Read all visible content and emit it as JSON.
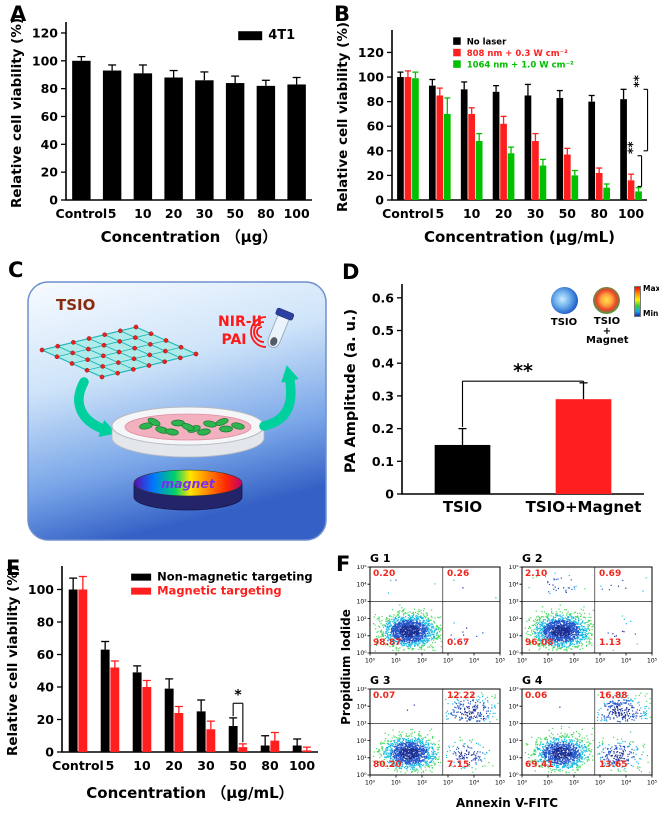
{
  "panels": {
    "a": "A",
    "b": "B",
    "c": "C",
    "d": "D",
    "e": "E",
    "f": "F"
  },
  "chart_data": [
    {
      "id": "A",
      "type": "bar",
      "ylabel": "Relative cell viability (%)",
      "xlabel": "Concentration （μg）",
      "ylim": [
        0,
        125
      ],
      "yticks": [
        0,
        20,
        40,
        60,
        80,
        100,
        120
      ],
      "categories": [
        "Control",
        "5",
        "10",
        "20",
        "30",
        "50",
        "80",
        "100"
      ],
      "series": [
        {
          "name": "4T1",
          "color": "#000000",
          "values": [
            100,
            93,
            91,
            88,
            86,
            84,
            82,
            83
          ],
          "errors": [
            3,
            4,
            6,
            5,
            6,
            5,
            4,
            5
          ]
        }
      ],
      "legend": {
        "x": 0.7,
        "y": 0.03,
        "colored_text": false
      }
    },
    {
      "id": "B",
      "type": "bar",
      "ylabel": "Relative cell viability (%)",
      "xlabel": "Concentration (μg/mL)",
      "ylim": [
        0,
        135
      ],
      "yticks": [
        0,
        20,
        40,
        60,
        80,
        100,
        120
      ],
      "categories": [
        "Control",
        "5",
        "10",
        "20",
        "30",
        "50",
        "80",
        "100"
      ],
      "series": [
        {
          "name": "No laser",
          "color": "#000000",
          "values": [
            100,
            93,
            90,
            88,
            85,
            83,
            80,
            82
          ],
          "errors": [
            4,
            5,
            6,
            5,
            9,
            6,
            5,
            8
          ]
        },
        {
          "name": "808 nm + 0.3 W cm⁻²",
          "color": "#ff1f1f",
          "values": [
            100,
            85,
            70,
            62,
            48,
            37,
            22,
            16
          ],
          "errors": [
            5,
            6,
            5,
            6,
            6,
            5,
            4,
            5
          ]
        },
        {
          "name": "1064 nm + 1.0 W cm⁻²",
          "color": "#00c000",
          "values": [
            99,
            70,
            48,
            38,
            28,
            20,
            10,
            7
          ],
          "errors": [
            5,
            13,
            6,
            5,
            5,
            4,
            3,
            3
          ]
        }
      ],
      "legend": {
        "x": 0.24,
        "y": 0.02,
        "colored_text": true
      },
      "annotations": [
        {
          "type": "v",
          "label": "**",
          "cat": 7,
          "s": 2,
          "x_off": 9,
          "y_top": 90,
          "y_bot": 40
        },
        {
          "type": "v",
          "label": "**",
          "cat": 7,
          "s": 2,
          "x_off": 3,
          "y_top": 36,
          "y_bot": 11
        }
      ]
    },
    {
      "id": "D",
      "type": "bar",
      "ylabel": "PA Amplitude (a. u.)",
      "xlabel": "",
      "ylim": [
        0,
        0.63
      ],
      "yticks": [
        0,
        0.1,
        0.2,
        0.3,
        0.4,
        0.5,
        0.6
      ],
      "ytick_labels": [
        "0",
        "0.1",
        "0.2",
        "0.3",
        "0.4",
        "0.5",
        "0.6"
      ],
      "categories": [
        "TSIO",
        "TSIO+Magnet"
      ],
      "series": [
        {
          "name": "PA amplitude",
          "colors": [
            "#000000",
            "#ff1f1f"
          ],
          "error_color": "#000000",
          "values": [
            0.15,
            0.29
          ],
          "errors": [
            0.05,
            0.05
          ]
        }
      ],
      "annotations": [
        {
          "type": "h",
          "label": "**",
          "x1": {
            "cat": 0,
            "s": 0
          },
          "x2": {
            "cat": 1,
            "s": 0
          },
          "y": 0.345,
          "drop1": 0.205,
          "drop2": 0.34
        }
      ]
    },
    {
      "id": "E",
      "type": "bar",
      "ylabel": "Relative cell viability (%)",
      "xlabel": "Concentration （μg/mL）",
      "ylim": [
        0,
        112
      ],
      "yticks": [
        0,
        20,
        40,
        60,
        80,
        100
      ],
      "categories": [
        "Control",
        "5",
        "10",
        "20",
        "30",
        "50",
        "80",
        "100"
      ],
      "series": [
        {
          "name": "Non-magnetic targeting",
          "color": "#000000",
          "values": [
            100,
            63,
            49,
            39,
            25,
            16,
            4,
            4
          ],
          "errors": [
            7,
            5,
            4,
            6,
            7,
            5,
            6,
            4
          ]
        },
        {
          "name": "Magnetic targeting",
          "color": "#ff1f1f",
          "values": [
            100,
            52,
            40,
            24,
            14,
            3,
            7,
            1
          ],
          "errors": [
            8,
            4,
            4,
            4,
            5,
            2,
            5,
            2
          ]
        }
      ],
      "legend": {
        "x": 0.27,
        "y": 0.02,
        "colored_text": true
      },
      "annotations": [
        {
          "type": "h",
          "label": "*",
          "x1": {
            "cat": 5,
            "s": 0
          },
          "x2": {
            "cat": 5,
            "s": 1
          },
          "y": 30,
          "drop1": 22,
          "drop2": 6
        }
      ]
    },
    {
      "id": "F",
      "type": "scatter",
      "subtype": "flow-cytometry-density",
      "xlabel": "Annexin V-FITC",
      "ylabel": "Propidium Iodide",
      "x_scale": "log",
      "y_scale": "log",
      "decade_labels": [
        "10⁰",
        "10¹",
        "10²",
        "10³",
        "10⁴",
        "10⁵"
      ],
      "plots": [
        {
          "name": "G 1",
          "ul": "0.20",
          "ur": "0.26",
          "ll": "98.87",
          "lr": "0.67"
        },
        {
          "name": "G 2",
          "ul": "2.10",
          "ur": "0.69",
          "ll": "96.08",
          "lr": "1.13"
        },
        {
          "name": "G 3",
          "ul": "0.07",
          "ur": "12.22",
          "ll": "80.20",
          "lr": "7.15"
        },
        {
          "name": "G 4",
          "ul": "0.06",
          "ur": "16.88",
          "ll": "69.41",
          "lr": "13.65"
        }
      ]
    }
  ],
  "panelC": {
    "sheet_label": "TSIO",
    "pai_line1": "NIR-II",
    "pai_line2": "PAI",
    "magnet_label": "magnet"
  },
  "panelD_inset": {
    "left_label": "TSIO",
    "right_label": "TSIO\n+\nMagnet",
    "max_label": "Max",
    "min_label": "Min"
  }
}
